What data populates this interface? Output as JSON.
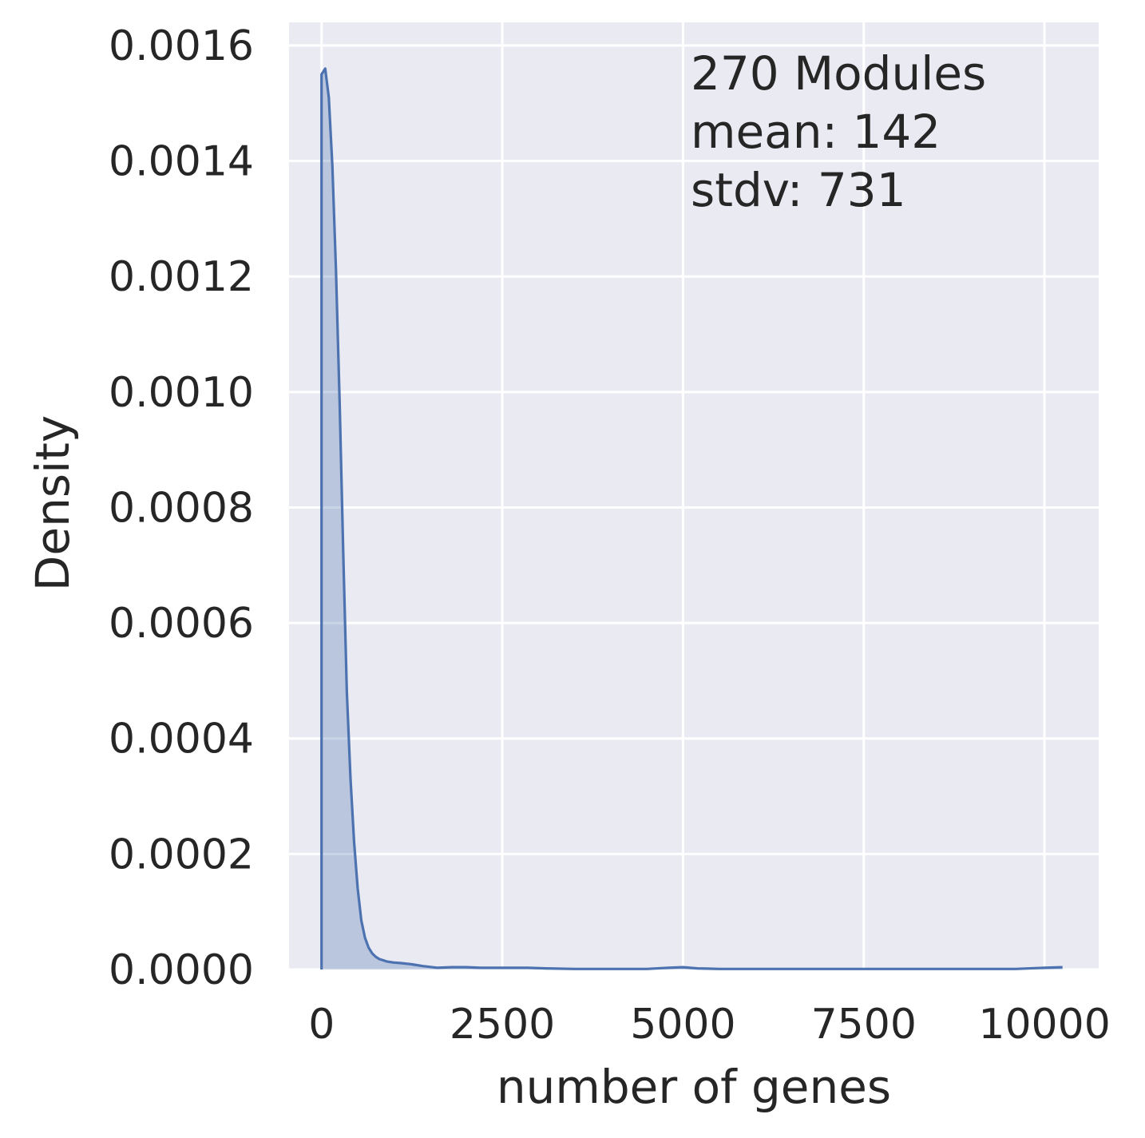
{
  "chart_data": {
    "type": "area",
    "xlabel": "number of genes",
    "ylabel": "Density",
    "xlim": [
      -450,
      10750
    ],
    "ylim": [
      0,
      0.00164
    ],
    "x_ticks": [
      0,
      2500,
      5000,
      7500,
      10000
    ],
    "x_tick_labels": [
      "0",
      "2500",
      "5000",
      "7500",
      "10000"
    ],
    "y_ticks": [
      0,
      0.0002,
      0.0004,
      0.0006,
      0.0008,
      0.001,
      0.0012,
      0.0014,
      0.0016
    ],
    "y_tick_labels": [
      "0.0000",
      "0.0002",
      "0.0004",
      "0.0006",
      "0.0008",
      "0.0010",
      "0.0012",
      "0.0014",
      "0.0016"
    ],
    "grid": true,
    "annotation": [
      "270 Modules",
      "mean: 142",
      "stdv: 731"
    ],
    "series": [
      {
        "color": "#4c72b0",
        "fill_color": "#4c72b0",
        "fill_opacity": 0.3,
        "x": [
          0,
          50,
          100,
          150,
          200,
          250,
          300,
          350,
          400,
          450,
          500,
          550,
          600,
          650,
          700,
          750,
          800,
          850,
          900,
          1000,
          1100,
          1250,
          1400,
          1600,
          1800,
          2000,
          2200,
          2400,
          2600,
          2850,
          3100,
          3500,
          4000,
          4500,
          4800,
          5000,
          5200,
          5500,
          6000,
          7000,
          8000,
          9000,
          9600,
          10000,
          10250
        ],
        "y": [
          0.00155,
          0.00156,
          0.00151,
          0.00139,
          0.00121,
          0.00098,
          0.00072,
          0.00048,
          0.00033,
          0.00022,
          0.00014,
          8.5e-05,
          5.5e-05,
          3.8e-05,
          2.8e-05,
          2.2e-05,
          1.8e-05,
          1.6e-05,
          1.4e-05,
          1.2e-05,
          1.1e-05,
          9e-06,
          6e-06,
          3e-06,
          4e-06,
          4e-06,
          3e-06,
          3e-06,
          3e-06,
          3e-06,
          2e-06,
          1e-06,
          1e-06,
          1e-06,
          3e-06,
          4e-06,
          2e-06,
          1e-06,
          1e-06,
          1e-06,
          1e-06,
          1e-06,
          1e-06,
          3e-06,
          4e-06
        ]
      }
    ]
  }
}
